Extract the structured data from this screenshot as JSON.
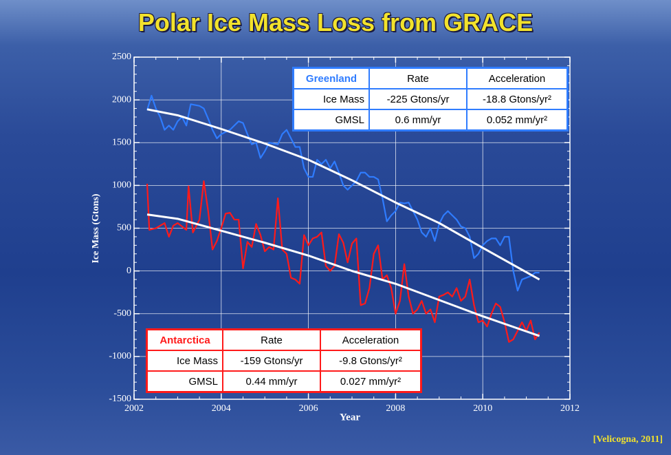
{
  "title": "Polar Ice Mass Loss from GRACE",
  "source": "[Velicogna, 2011]",
  "chart_data": {
    "type": "line",
    "xlabel": "Year",
    "ylabel": "Ice Mass (Gtons)",
    "xlim": [
      2002,
      2012
    ],
    "xticks": [
      2002,
      2004,
      2006,
      2008,
      2010,
      2012
    ],
    "ylim": [
      -1500,
      2500
    ],
    "yticks": [
      -1500,
      -1000,
      -500,
      0,
      500,
      1000,
      1500,
      2000,
      2500
    ],
    "grid": true,
    "series": [
      {
        "color": "#2f7cff",
        "x": [
          2002.3,
          2002.4,
          2002.5,
          2002.6,
          2002.7,
          2002.8,
          2002.9,
          2003.0,
          2003.1,
          2003.2,
          2003.3,
          2003.5,
          2003.6,
          2003.7,
          2003.8,
          2003.9,
          2004.0,
          2004.2,
          2004.3,
          2004.4,
          2004.5,
          2004.6,
          2004.7,
          2004.8,
          2004.9,
          2005.0,
          2005.1,
          2005.3,
          2005.4,
          2005.5,
          2005.6,
          2005.7,
          2005.8,
          2005.9,
          2006.0,
          2006.1,
          2006.2,
          2006.3,
          2006.4,
          2006.5,
          2006.6,
          2006.7,
          2006.8,
          2006.9,
          2007.0,
          2007.1,
          2007.2,
          2007.3,
          2007.4,
          2007.5,
          2007.6,
          2007.7,
          2007.8,
          2007.9,
          2008.0,
          2008.1,
          2008.2,
          2008.3,
          2008.4,
          2008.5,
          2008.6,
          2008.7,
          2008.8,
          2008.9,
          2009.0,
          2009.1,
          2009.2,
          2009.3,
          2009.4,
          2009.5,
          2009.6,
          2009.7,
          2009.8,
          2009.9,
          2010.0,
          2010.1,
          2010.2,
          2010.3,
          2010.4,
          2010.5,
          2010.6,
          2010.7,
          2010.8,
          2010.9,
          2011.0,
          2011.1,
          2011.2,
          2011.3
        ],
        "values": [
          1880,
          2050,
          1900,
          1800,
          1650,
          1700,
          1650,
          1750,
          1800,
          1700,
          1950,
          1930,
          1900,
          1780,
          1650,
          1550,
          1600,
          1650,
          1700,
          1750,
          1730,
          1600,
          1480,
          1500,
          1320,
          1400,
          1500,
          1480,
          1600,
          1650,
          1550,
          1450,
          1450,
          1200,
          1100,
          1100,
          1300,
          1250,
          1300,
          1200,
          1280,
          1150,
          1000,
          950,
          1000,
          1050,
          1150,
          1150,
          1100,
          1100,
          1070,
          850,
          580,
          650,
          700,
          800,
          790,
          800,
          700,
          600,
          450,
          400,
          500,
          350,
          550,
          650,
          700,
          650,
          600,
          520,
          500,
          400,
          150,
          200,
          300,
          350,
          380,
          380,
          300,
          400,
          400,
          0,
          -230,
          -100,
          -80,
          -60,
          -20,
          -20
        ]
      },
      {
        "color": "#ff1a1a",
        "x": [
          2002.3,
          2002.35,
          2002.5,
          2002.6,
          2002.7,
          2002.8,
          2002.9,
          2003.0,
          2003.1,
          2003.2,
          2003.25,
          2003.35,
          2003.5,
          2003.6,
          2003.7,
          2003.8,
          2003.9,
          2004.0,
          2004.1,
          2004.2,
          2004.3,
          2004.4,
          2004.5,
          2004.6,
          2004.7,
          2004.8,
          2004.9,
          2005.0,
          2005.1,
          2005.2,
          2005.3,
          2005.4,
          2005.5,
          2005.6,
          2005.7,
          2005.8,
          2005.9,
          2006.0,
          2006.1,
          2006.2,
          2006.3,
          2006.4,
          2006.5,
          2006.6,
          2006.7,
          2006.8,
          2006.9,
          2007.0,
          2007.1,
          2007.2,
          2007.3,
          2007.4,
          2007.5,
          2007.6,
          2007.7,
          2007.8,
          2007.9,
          2008.0,
          2008.1,
          2008.2,
          2008.3,
          2008.4,
          2008.5,
          2008.6,
          2008.7,
          2008.8,
          2008.9,
          2009.0,
          2009.1,
          2009.2,
          2009.3,
          2009.4,
          2009.5,
          2009.6,
          2009.7,
          2009.8,
          2009.9,
          2010.0,
          2010.1,
          2010.2,
          2010.3,
          2010.4,
          2010.5,
          2010.6,
          2010.7,
          2010.8,
          2010.9,
          2011.0,
          2011.1,
          2011.2,
          2011.3
        ],
        "values": [
          1020,
          480,
          500,
          530,
          560,
          400,
          530,
          560,
          520,
          480,
          990,
          450,
          600,
          1050,
          700,
          250,
          350,
          500,
          670,
          680,
          600,
          600,
          30,
          340,
          280,
          550,
          420,
          230,
          280,
          250,
          850,
          250,
          200,
          -80,
          -100,
          -150,
          420,
          300,
          380,
          400,
          450,
          60,
          0,
          60,
          430,
          330,
          100,
          320,
          380,
          -400,
          -380,
          -200,
          200,
          300,
          -100,
          -50,
          -200,
          -500,
          -350,
          80,
          -300,
          -500,
          -450,
          -350,
          -500,
          -450,
          -600,
          -300,
          -280,
          -250,
          -300,
          -200,
          -350,
          -300,
          -100,
          -400,
          -600,
          -580,
          -650,
          -500,
          -380,
          -420,
          -600,
          -830,
          -800,
          -700,
          -600,
          -700,
          -580,
          -800,
          -720
        ]
      },
      {
        "color": "#ffffff",
        "x": [
          2002.3,
          2003,
          2004,
          2005,
          2006,
          2007,
          2008,
          2009,
          2010,
          2011.3
        ],
        "values": [
          1890,
          1820,
          1660,
          1490,
          1300,
          1060,
          800,
          560,
          270,
          -100
        ]
      },
      {
        "color": "#ffffff",
        "x": [
          2002.3,
          2003,
          2004,
          2005,
          2006,
          2007,
          2008,
          2009,
          2010,
          2011.3
        ],
        "values": [
          660,
          610,
          470,
          330,
          180,
          0,
          -150,
          -340,
          -530,
          -760
        ]
      }
    ],
    "tables": [
      {
        "color": "#2f7cff",
        "header": [
          "Greenland",
          "Rate",
          "Acceleration"
        ],
        "rows": [
          [
            "Ice Mass",
            "-225 Gtons/yr",
            "-18.8 Gtons/yr²"
          ],
          [
            "GMSL",
            "0.6 mm/yr",
            "0.052 mm/yr²"
          ]
        ]
      },
      {
        "color": "#ff1a1a",
        "header": [
          "Antarctica",
          "Rate",
          "Acceleration"
        ],
        "rows": [
          [
            "Ice Mass",
            "-159 Gtons/yr",
            "-9.8 Gtons/yr²"
          ],
          [
            "GMSL",
            "0.44 mm/yr",
            "0.027 mm/yr²"
          ]
        ]
      }
    ]
  }
}
